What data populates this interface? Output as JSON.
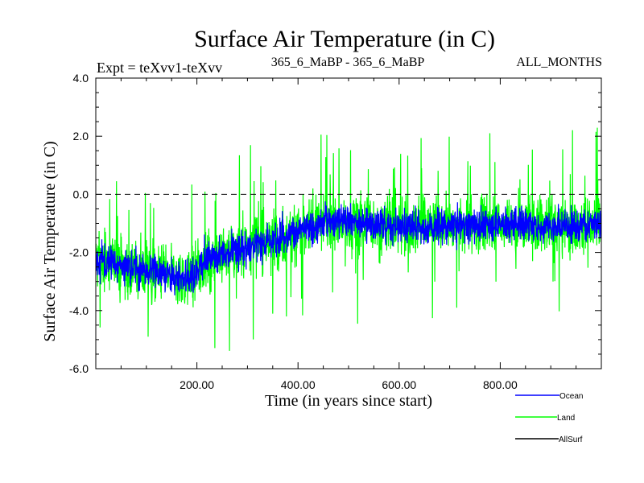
{
  "chart_data": {
    "type": "line",
    "title": "Surface Air Temperature (in C)",
    "subtitle_left": "Expt = teXvv1-teXvv",
    "subtitle_center": "365_6_MaBP - 365_6_MaBP",
    "subtitle_right": "ALL_MONTHS",
    "xlabel": "Time (in years since start)",
    "ylabel": "Surface Air Temperature (in C)",
    "xlim": [
      0,
      1000
    ],
    "ylim": [
      -6,
      4
    ],
    "x_ticks": [
      200,
      400,
      600,
      800
    ],
    "x_tick_labels": [
      "200.00",
      "400.00",
      "600.00",
      "800.00"
    ],
    "y_ticks": [
      -6,
      -4,
      -2,
      0,
      2,
      4
    ],
    "y_tick_labels": [
      "-6.0",
      "-4.0",
      "-2.0",
      "0.0",
      "2.0",
      "4.0"
    ],
    "reference_line": 0,
    "trend_points": {
      "x": [
        0,
        20,
        60,
        120,
        170,
        195,
        210,
        260,
        320,
        400,
        460,
        520,
        600,
        700,
        800,
        900,
        1000
      ],
      "y": [
        -2.3,
        -2.3,
        -2.5,
        -2.7,
        -2.9,
        -2.9,
        -2.3,
        -2.0,
        -1.7,
        -1.3,
        -0.9,
        -1.0,
        -1.1,
        -1.1,
        -1.0,
        -1.1,
        -1.1
      ]
    },
    "series": [
      {
        "name": "Land",
        "color": "#00ff00",
        "noise_amplitude": 0.9,
        "spike_max": 2.6,
        "spike_min": -5.5
      },
      {
        "name": "Ocean",
        "color": "#0000ff",
        "noise_amplitude": 0.3
      },
      {
        "name": "AllSurf",
        "color": "#000000"
      }
    ],
    "legend_position": "bottom-right"
  }
}
